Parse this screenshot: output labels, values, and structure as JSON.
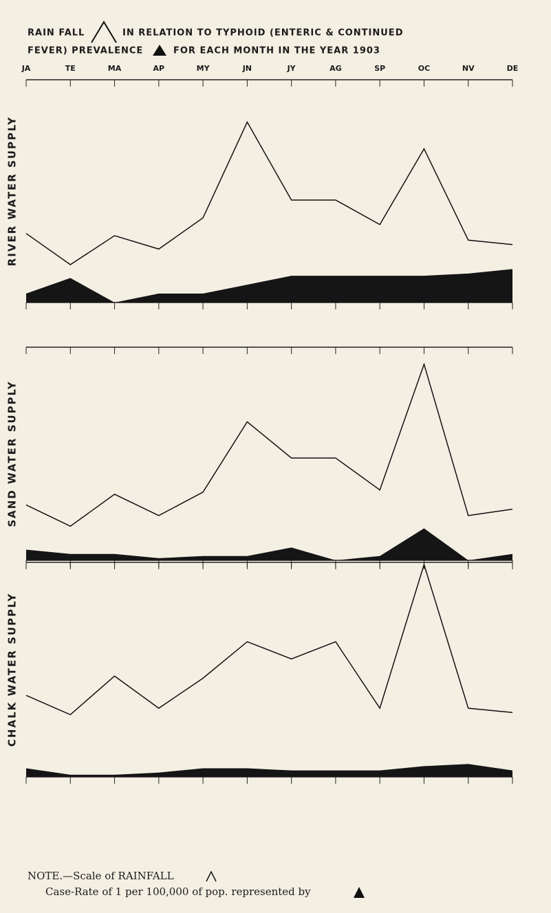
{
  "title_lines": [
    "RAIN FALL",
    "IN RELATION TO TYPHOID (ENTERIC & CONTINUED",
    "FEVER) PREVALENCE",
    "FOR EACH MONTH IN THE YEAR 1903"
  ],
  "note": [
    "NOTE.—Scale of RAINFALL",
    "Case-Rate of 1 per 100,000 of pop. represented by"
  ],
  "chart_data": {
    "type": "line",
    "categories": [
      "JA",
      "TE",
      "MA",
      "AP",
      "MY",
      "JN",
      "JY",
      "AG",
      "SP",
      "OC",
      "NV",
      "DE"
    ],
    "ylim": [
      0,
      100
    ],
    "panels": [
      {
        "label": "RIVER WATER SUPPLY",
        "series": [
          {
            "type": "line",
            "color": "#111111",
            "values": [
              31,
              17,
              30,
              24,
              38,
              81,
              46,
              46,
              35,
              69,
              28,
              26
            ]
          },
          {
            "type": "area",
            "color": "#151515",
            "values": [
              4,
              11,
              0,
              4,
              4,
              8,
              12,
              12,
              12,
              12,
              13,
              15
            ]
          }
        ]
      },
      {
        "label": "SAND WATER SUPPLY",
        "series": [
          {
            "type": "line",
            "color": "#111111",
            "values": [
              26,
              16,
              31,
              21,
              32,
              65,
              48,
              48,
              33,
              92,
              21,
              24
            ]
          },
          {
            "type": "area",
            "color": "#151515",
            "values": [
              5,
              3,
              3,
              1,
              2,
              2,
              6,
              0,
              2,
              15,
              0,
              3
            ]
          }
        ]
      },
      {
        "label": "CHALK WATER SUPPLY",
        "series": [
          {
            "type": "line",
            "color": "#111111",
            "values": [
              38,
              29,
              47,
              32,
              46,
              63,
              55,
              63,
              32,
              99,
              32,
              30
            ]
          },
          {
            "type": "area",
            "color": "#151515",
            "values": [
              4,
              1,
              1,
              2,
              4,
              4,
              3,
              3,
              3,
              5,
              6,
              3
            ]
          }
        ]
      }
    ]
  }
}
